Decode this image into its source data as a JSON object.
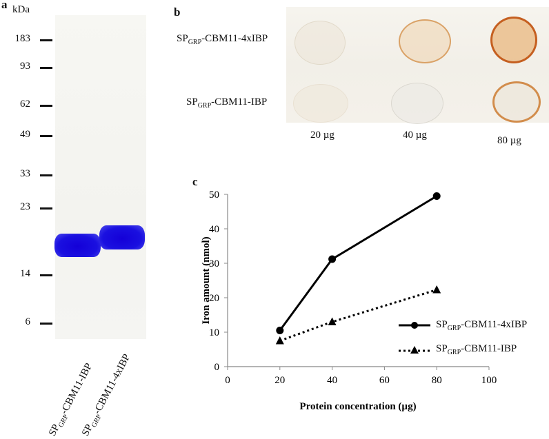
{
  "panels": {
    "a": {
      "letter": "a",
      "unit": "kDa",
      "markers": [
        "183",
        "93",
        "62",
        "49",
        "33",
        "23",
        "14",
        "6"
      ],
      "lanes": [
        {
          "prefix": "SP",
          "sub": "GRP",
          "suffix": "-CBM11-IBP"
        },
        {
          "prefix": "SP",
          "sub": "GRP",
          "suffix": "-CBM11-4xIBP"
        }
      ],
      "band_color": "#1a10e0"
    },
    "b": {
      "letter": "b",
      "rows": [
        {
          "prefix": "SP",
          "sub": "GRP",
          "suffix": "-CBM11-4xIBP"
        },
        {
          "prefix": "SP",
          "sub": "GRP",
          "suffix": "-CBM11-IBP"
        }
      ],
      "columns": [
        "20 µg",
        "40 µg",
        "80 µg"
      ],
      "stain_color": "#c8641e"
    },
    "c": {
      "letter": "c"
    }
  },
  "chart_data": {
    "type": "line",
    "xlabel": "Protein concentration (µg)",
    "ylabel": "Iron amount (nmol)",
    "xlim": [
      0,
      100
    ],
    "ylim": [
      0,
      50
    ],
    "xticks": [
      "0",
      "20",
      "40",
      "60",
      "80",
      "100"
    ],
    "yticks": [
      "0",
      "10",
      "20",
      "30",
      "40",
      "50"
    ],
    "grid": false,
    "legend_position": "right",
    "series": [
      {
        "prefix": "SP",
        "sub": "GRP",
        "suffix": "-CBM11-4xIBP",
        "marker": "circle",
        "line": "solid",
        "x": [
          20,
          40,
          80
        ],
        "y": [
          10.5,
          31.2,
          49.5
        ]
      },
      {
        "prefix": "SP",
        "sub": "GRP",
        "suffix": "-CBM11-IBP",
        "marker": "triangle",
        "line": "dotted",
        "x": [
          20,
          40,
          80
        ],
        "y": [
          7.5,
          13.0,
          22.3
        ]
      }
    ]
  }
}
